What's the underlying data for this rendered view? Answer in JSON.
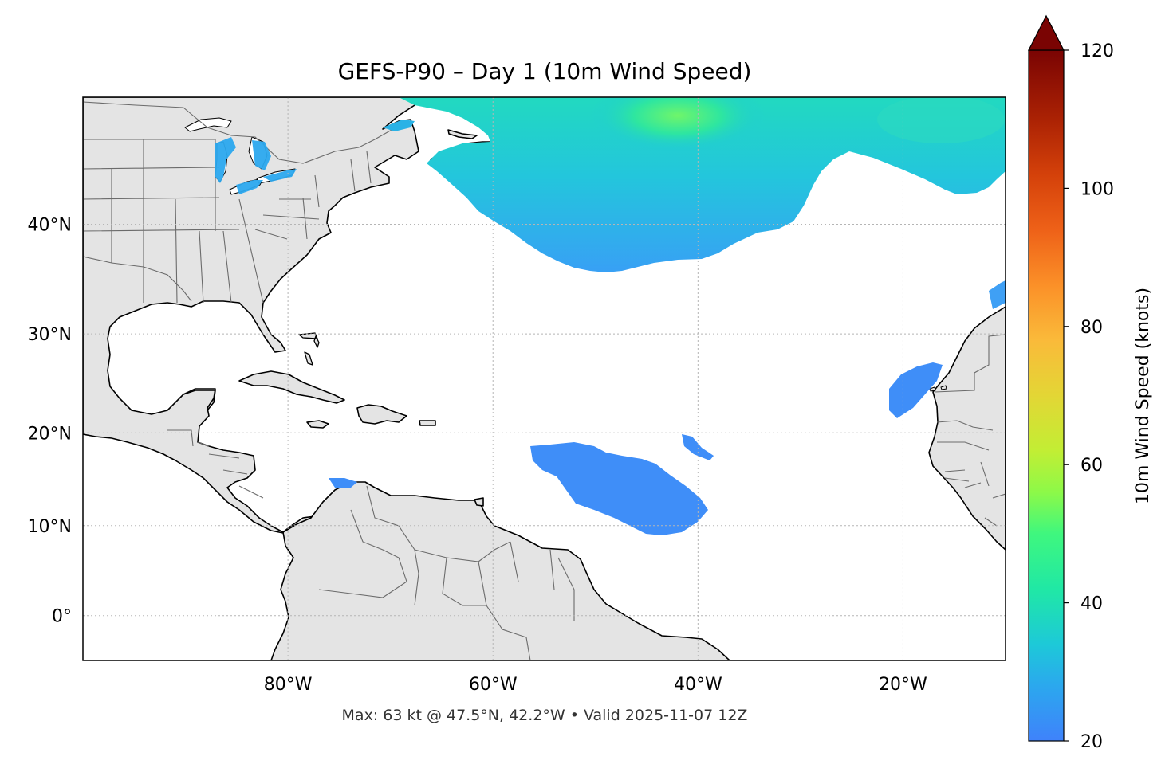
{
  "title": "GEFS-P90 – Day 1 (10m Wind Speed)",
  "footer": "Max: 63 kt @ 47.5°N, 42.2°W • Valid 2025-11-07 12Z",
  "map": {
    "lon_range": [
      -100,
      -10
    ],
    "lat_range": [
      -5,
      50
    ],
    "lon_ticks": [
      {
        "value": -80,
        "label": "80°W"
      },
      {
        "value": -60,
        "label": "60°W"
      },
      {
        "value": -40,
        "label": "40°W"
      },
      {
        "value": -20,
        "label": "20°W"
      }
    ],
    "lat_ticks": [
      {
        "value": 40,
        "label": "40°N"
      },
      {
        "value": 30,
        "label": "30°N"
      },
      {
        "value": 20,
        "label": "20°N"
      },
      {
        "value": 10,
        "label": "10°N"
      },
      {
        "value": 0,
        "label": "0°"
      }
    ],
    "gridlines": "dotted",
    "land_color": "#e4e4e4",
    "coastline_color": "#000000",
    "border_color": "#6b6b6b"
  },
  "colorbar": {
    "label": "10m Wind Speed (knots)",
    "range": [
      20,
      120
    ],
    "extend": "max",
    "colormap": "turbo",
    "ticks": [
      {
        "value": 20,
        "label": "20"
      },
      {
        "value": 40,
        "label": "40"
      },
      {
        "value": 60,
        "label": "60"
      },
      {
        "value": 80,
        "label": "80"
      },
      {
        "value": 100,
        "label": "100"
      },
      {
        "value": 120,
        "label": "120"
      }
    ],
    "extend_color": "#7a0403"
  },
  "max_wind": {
    "value": 63,
    "units": "kt",
    "lat": 47.5,
    "lon": -42.2
  },
  "valid_time": "2025-11-07 12Z"
}
